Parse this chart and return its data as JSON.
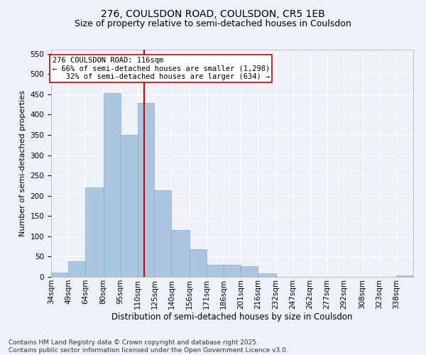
{
  "title1": "276, COULSDON ROAD, COULSDON, CR5 1EB",
  "title2": "Size of property relative to semi-detached houses in Coulsdon",
  "xlabel": "Distribution of semi-detached houses by size in Coulsdon",
  "ylabel": "Number of semi-detached properties",
  "bins": [
    34,
    49,
    64,
    80,
    95,
    110,
    125,
    140,
    156,
    171,
    186,
    201,
    216,
    232,
    247,
    262,
    277,
    292,
    308,
    323,
    338,
    353
  ],
  "bin_labels": [
    "34sqm",
    "49sqm",
    "64sqm",
    "80sqm",
    "95sqm",
    "110sqm",
    "125sqm",
    "140sqm",
    "156sqm",
    "171sqm",
    "186sqm",
    "201sqm",
    "216sqm",
    "232sqm",
    "247sqm",
    "262sqm",
    "277sqm",
    "292sqm",
    "308sqm",
    "323sqm",
    "338sqm"
  ],
  "values": [
    10,
    38,
    220,
    453,
    350,
    428,
    213,
    115,
    68,
    30,
    30,
    27,
    8,
    0,
    0,
    0,
    0,
    0,
    0,
    0,
    3
  ],
  "bar_color": "#adc6e0",
  "bar_edge_color": "#7aafc8",
  "property_line_x": 116,
  "property_line_color": "#cc0000",
  "annotation_line1": "276 COULSDON ROAD: 116sqm",
  "annotation_line2": "← 66% of semi-detached houses are smaller (1,298)",
  "annotation_line3": "   32% of semi-detached houses are larger (634) →",
  "annotation_box_color": "#ffffff",
  "annotation_box_edge_color": "#cc0000",
  "ylim": [
    0,
    560
  ],
  "yticks": [
    0,
    50,
    100,
    150,
    200,
    250,
    300,
    350,
    400,
    450,
    500,
    550
  ],
  "background_color": "#eef2f8",
  "grid_color": "#ffffff",
  "footer_line1": "Contains HM Land Registry data © Crown copyright and database right 2025.",
  "footer_line2": "Contains public sector information licensed under the Open Government Licence v3.0.",
  "title1_fontsize": 10,
  "title2_fontsize": 9,
  "xlabel_fontsize": 8.5,
  "ylabel_fontsize": 8,
  "tick_fontsize": 7.5,
  "annot_fontsize": 7.5,
  "footer_fontsize": 6.5
}
